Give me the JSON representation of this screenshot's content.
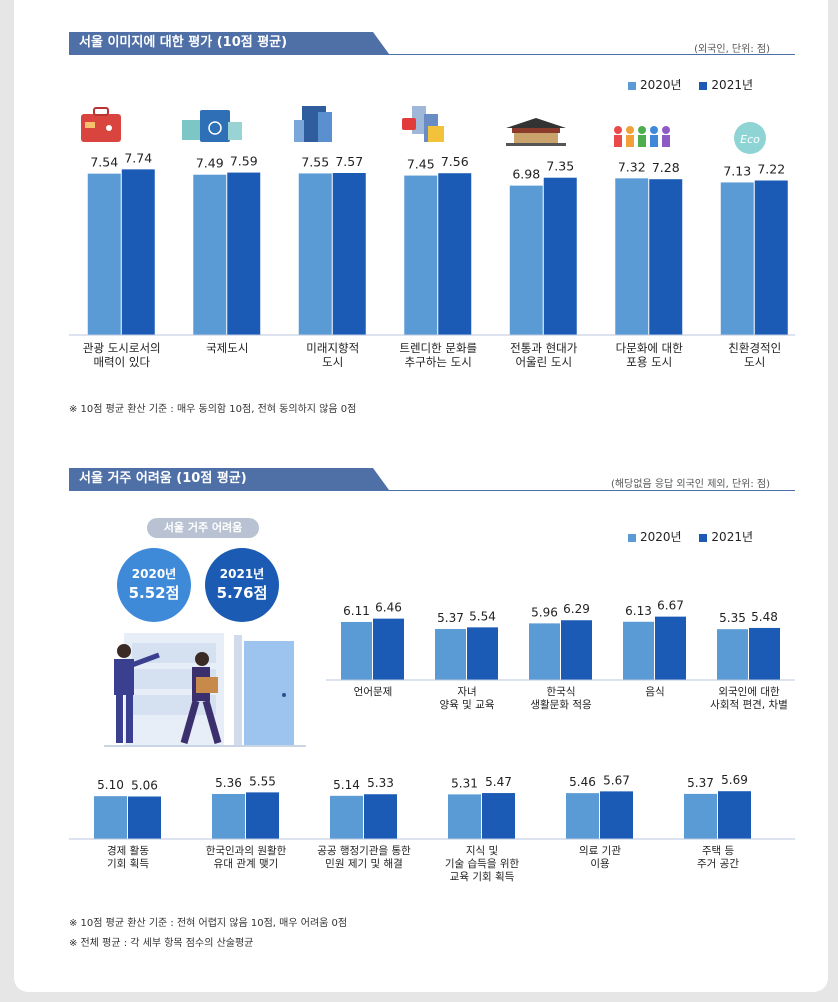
{
  "colors": {
    "s2020": "#5b9bd5",
    "s2021": "#1c5bb5",
    "title_bg": "#4f6fa7",
    "circle2020": "#3f8ad8",
    "circle2021": "#1b5bb4"
  },
  "section1": {
    "title": "서울 이미지에 대한 평가 (10점 평균)",
    "unit": "(외국인, 단위: 점)",
    "legend": [
      "2020년",
      "2021년"
    ],
    "note": "※ 10점 평균 환산 기준 : 매우 동의함 10점, 전혀 동의하지 않음 0점",
    "icons": [
      "suitcase-icon",
      "passport-icon",
      "buildings-icon",
      "trend-city-icon",
      "palace-icon",
      "people-icon",
      "eco-icon"
    ]
  },
  "section2": {
    "title": "서울 거주 어려움 (10점 평균)",
    "unit": "(해당없음 응답 외국인 제외, 단위: 점)",
    "legend": [
      "2020년",
      "2021년"
    ],
    "badge": "서울 거주 어려움",
    "avg2020_year": "2020년",
    "avg2020_value": "5.52점",
    "avg2021_year": "2021년",
    "avg2021_value": "5.76점",
    "note1": "※ 10점 평균 환산 기준 : 전혀 어렵지 않음 10점, 매우 어려움 0점",
    "note2": "※ 전체 평균 : 각 세부 항목 점수의 산술평균"
  },
  "chart_data": [
    {
      "type": "bar",
      "title": "서울 이미지에 대한 평가 (10점 평균)",
      "categories": [
        "관광 도시로서의\n매력이 있다",
        "국제도시",
        "미래지향적\n도시",
        "트렌디한 문화를\n추구하는 도시",
        "전통과 현대가\n어울린 도시",
        "다문화에 대한\n포용 도시",
        "친환경적인\n도시"
      ],
      "series": [
        {
          "name": "2020년",
          "values": [
            7.54,
            7.49,
            7.55,
            7.45,
            6.98,
            7.32,
            7.13
          ]
        },
        {
          "name": "2021년",
          "values": [
            7.74,
            7.59,
            7.57,
            7.56,
            7.35,
            7.28,
            7.22
          ]
        }
      ],
      "ylim": [
        0,
        10
      ],
      "legend": "top-right",
      "grid": false
    },
    {
      "type": "bar",
      "title": "서울 거주 어려움 (10점 평균)",
      "categories": [
        "언어문제",
        "자녀\n양육 및 교육",
        "한국식\n생활문화 적응",
        "음식",
        "외국인에 대한\n사회적 편견, 차별"
      ],
      "series": [
        {
          "name": "2020년",
          "values": [
            6.11,
            5.37,
            5.96,
            6.13,
            5.35
          ]
        },
        {
          "name": "2021년",
          "values": [
            6.46,
            5.54,
            6.29,
            6.67,
            5.48
          ]
        }
      ],
      "ylim": [
        0,
        10
      ],
      "legend": "top-right",
      "grid": false
    },
    {
      "type": "bar",
      "categories": [
        "경제 활동\n기회 획득",
        "한국인과의 원활한\n유대 관계 맺기",
        "공공 행정기관을 통한\n민원 제기 및 해결",
        "지식 및\n기술 습득을 위한\n교육 기회 획득",
        "의료 기관\n이용",
        "주택 등\n주거 공간"
      ],
      "series": [
        {
          "name": "2020년",
          "values": [
            5.1,
            5.36,
            5.14,
            5.31,
            5.46,
            5.37
          ]
        },
        {
          "name": "2021년",
          "values": [
            5.06,
            5.55,
            5.33,
            5.47,
            5.67,
            5.69
          ]
        }
      ],
      "ylim": [
        0,
        10
      ],
      "grid": false
    }
  ]
}
